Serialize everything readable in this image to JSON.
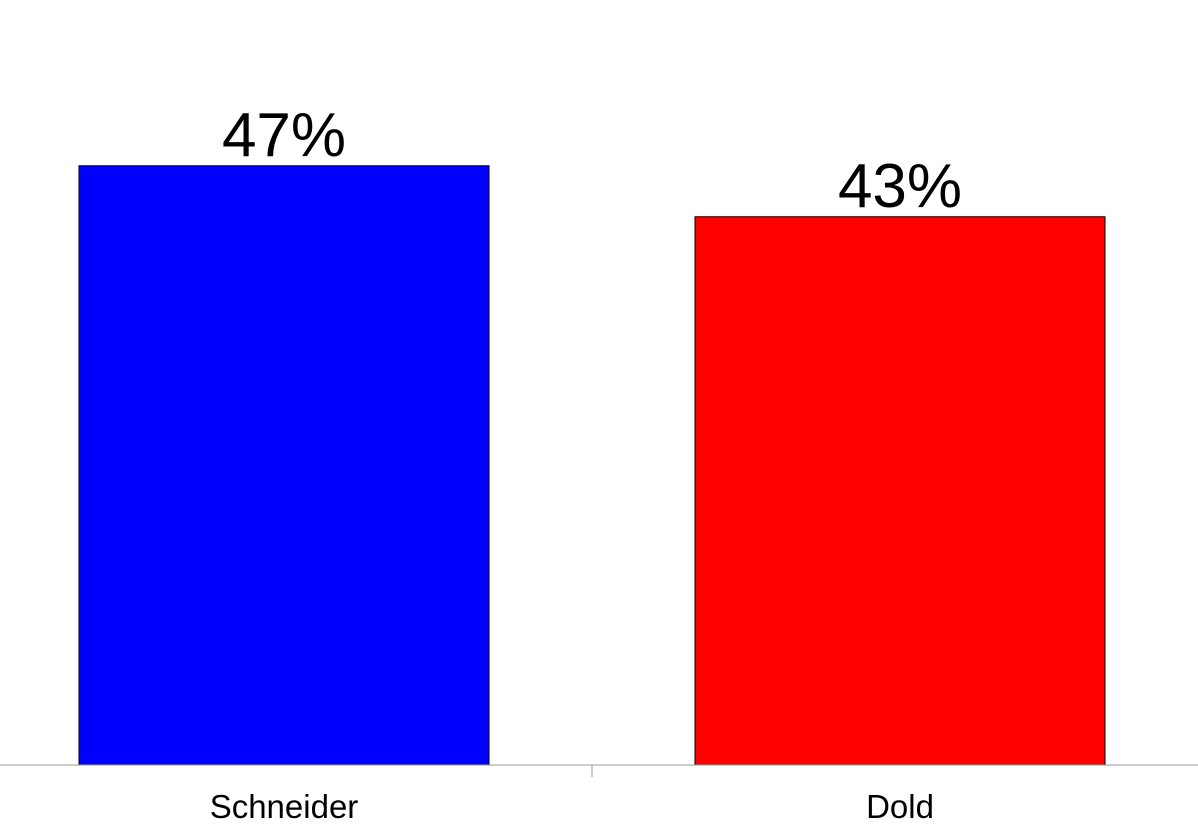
{
  "chart_data": {
    "type": "bar",
    "categories": [
      "Schneider",
      "Dold"
    ],
    "values": [
      47,
      43
    ],
    "value_labels": [
      "47%",
      "43%"
    ],
    "colors": [
      "#0000ff",
      "#ff0000"
    ],
    "ylim": [
      0,
      60
    ]
  }
}
